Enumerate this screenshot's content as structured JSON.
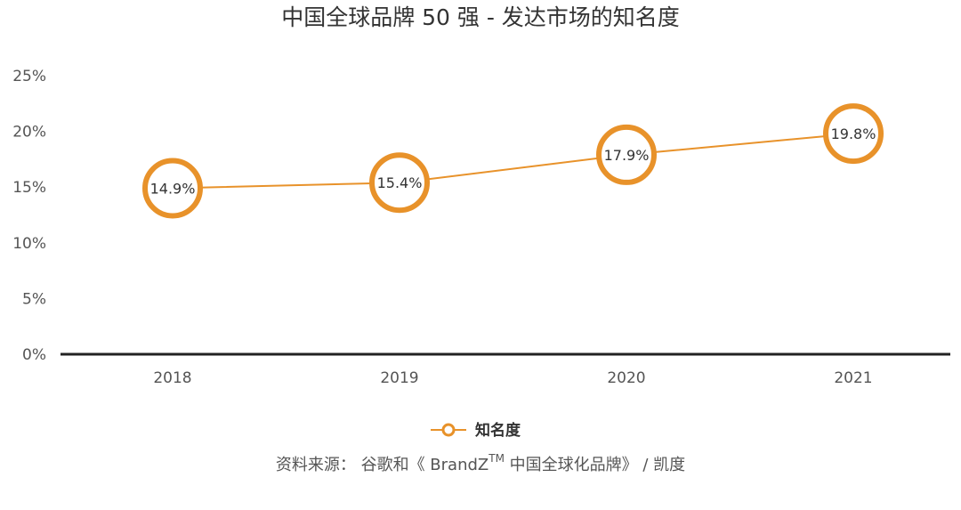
{
  "chart_data": {
    "type": "line",
    "title": "中国全球品牌 50 强 - 发达市场的知名度",
    "categories": [
      "2018",
      "2019",
      "2020",
      "2021"
    ],
    "series": [
      {
        "name": "知名度",
        "values": [
          14.9,
          15.4,
          17.9,
          19.8
        ],
        "labels": [
          "14.9%",
          "15.4%",
          "17.9%",
          "19.8%"
        ]
      }
    ],
    "yticks": [
      "0%",
      "5%",
      "10%",
      "15%",
      "20%",
      "25%"
    ],
    "ylim": [
      0,
      25
    ],
    "grid": false,
    "legend_position": "bottom-center",
    "colors": {
      "line": "#e8922a",
      "axis": "#222222"
    }
  },
  "source": {
    "prefix": "资料来源： 谷歌和《 BrandZ",
    "tm": "TM",
    "suffix": " 中国全球化品牌》 / 凯度"
  }
}
